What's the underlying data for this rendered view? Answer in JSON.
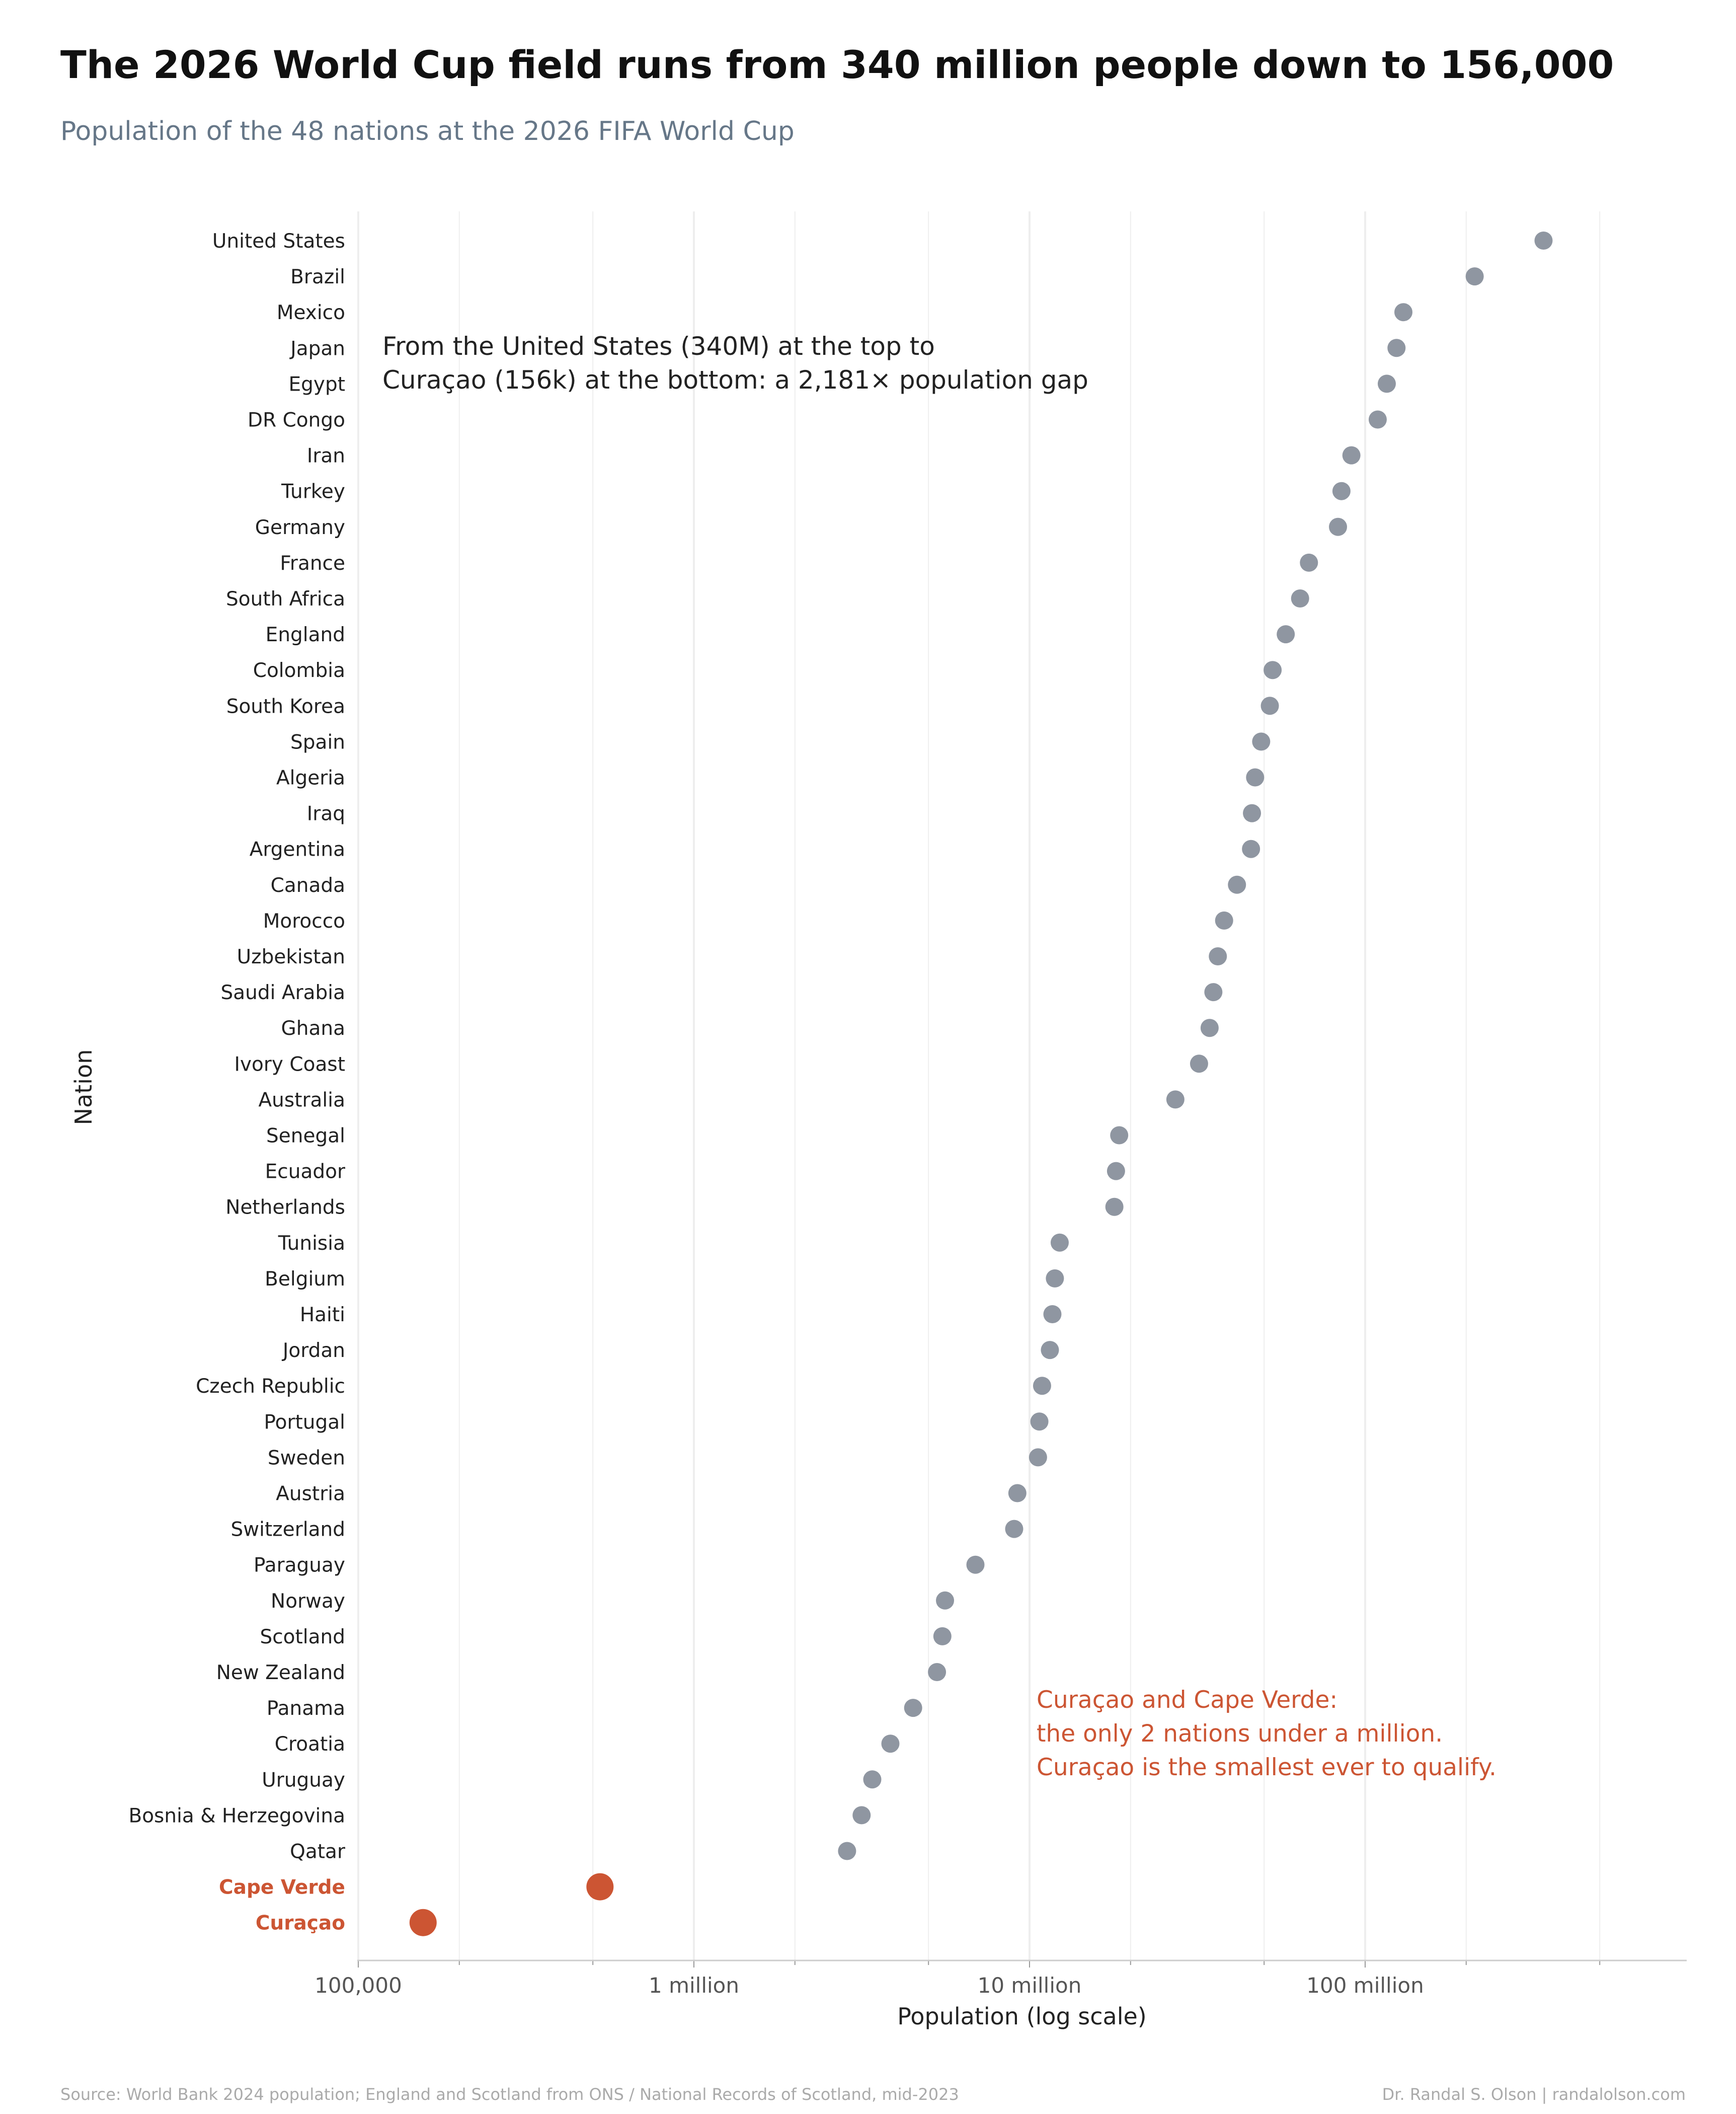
{
  "title": "The 2026 World Cup field runs from 340 million people down to 156,000",
  "subtitle": "Population of the 48 nations at the 2026 FIFA World Cup",
  "annotation_top": {
    "line1": "From the United States (340M) at the top to",
    "line2": "Curaçao (156k) at the bottom: a 2,181× population gap"
  },
  "annotation_highlight": {
    "line1": "Curaçao and Cape Verde:",
    "line2": "the only 2 nations under a million.",
    "line3": "Curaçao is the smallest ever to qualify."
  },
  "footer": {
    "source": "Source: World Bank 2024 population; England and Scotland from ONS / National Records of Scotland, mid-2023",
    "credit": "Dr. Randal S. Olson  |  randalolson.com"
  },
  "colors": {
    "dot": "#8f96a1",
    "highlight": "#cc5533",
    "grid": "#eeeeee",
    "axis": "#cccccc"
  },
  "chart_data": {
    "type": "scatter",
    "orientation": "horizontal dot plot",
    "xlabel": "Population (log scale)",
    "ylabel": "Nation",
    "xscale": "log",
    "xlim": [
      100000,
      800000000
    ],
    "grid": "vertical",
    "xticks": [
      {
        "value": 100000,
        "label": "100,000"
      },
      {
        "value": 1000000,
        "label": "1 million"
      },
      {
        "value": 10000000,
        "label": "10 million"
      },
      {
        "value": 100000000,
        "label": "100 million"
      }
    ],
    "points": [
      {
        "name": "United States",
        "value": 340000000,
        "highlight": false
      },
      {
        "name": "Brazil",
        "value": 212000000,
        "highlight": false
      },
      {
        "name": "Mexico",
        "value": 130000000,
        "highlight": false
      },
      {
        "name": "Japan",
        "value": 124000000,
        "highlight": false
      },
      {
        "name": "Egypt",
        "value": 116000000,
        "highlight": false
      },
      {
        "name": "DR Congo",
        "value": 109000000,
        "highlight": false
      },
      {
        "name": "Iran",
        "value": 91000000,
        "highlight": false
      },
      {
        "name": "Turkey",
        "value": 85000000,
        "highlight": false
      },
      {
        "name": "Germany",
        "value": 83000000,
        "highlight": false
      },
      {
        "name": "France",
        "value": 68000000,
        "highlight": false
      },
      {
        "name": "South Africa",
        "value": 64000000,
        "highlight": false
      },
      {
        "name": "England",
        "value": 58000000,
        "highlight": false
      },
      {
        "name": "Colombia",
        "value": 53000000,
        "highlight": false
      },
      {
        "name": "South Korea",
        "value": 52000000,
        "highlight": false
      },
      {
        "name": "Spain",
        "value": 49000000,
        "highlight": false
      },
      {
        "name": "Algeria",
        "value": 47000000,
        "highlight": false
      },
      {
        "name": "Iraq",
        "value": 46000000,
        "highlight": false
      },
      {
        "name": "Argentina",
        "value": 45700000,
        "highlight": false
      },
      {
        "name": "Canada",
        "value": 41500000,
        "highlight": false
      },
      {
        "name": "Morocco",
        "value": 38000000,
        "highlight": false
      },
      {
        "name": "Uzbekistan",
        "value": 36400000,
        "highlight": false
      },
      {
        "name": "Saudi Arabia",
        "value": 35300000,
        "highlight": false
      },
      {
        "name": "Ghana",
        "value": 34400000,
        "highlight": false
      },
      {
        "name": "Ivory Coast",
        "value": 32000000,
        "highlight": false
      },
      {
        "name": "Australia",
        "value": 27200000,
        "highlight": false
      },
      {
        "name": "Senegal",
        "value": 18500000,
        "highlight": false
      },
      {
        "name": "Ecuador",
        "value": 18100000,
        "highlight": false
      },
      {
        "name": "Netherlands",
        "value": 17900000,
        "highlight": false
      },
      {
        "name": "Tunisia",
        "value": 12300000,
        "highlight": false
      },
      {
        "name": "Belgium",
        "value": 11900000,
        "highlight": false
      },
      {
        "name": "Haiti",
        "value": 11700000,
        "highlight": false
      },
      {
        "name": "Jordan",
        "value": 11500000,
        "highlight": false
      },
      {
        "name": "Czech Republic",
        "value": 10900000,
        "highlight": false
      },
      {
        "name": "Portugal",
        "value": 10700000,
        "highlight": false
      },
      {
        "name": "Sweden",
        "value": 10600000,
        "highlight": false
      },
      {
        "name": "Austria",
        "value": 9200000,
        "highlight": false
      },
      {
        "name": "Switzerland",
        "value": 9000000,
        "highlight": false
      },
      {
        "name": "Paraguay",
        "value": 6900000,
        "highlight": false
      },
      {
        "name": "Norway",
        "value": 5600000,
        "highlight": false
      },
      {
        "name": "Scotland",
        "value": 5500000,
        "highlight": false
      },
      {
        "name": "New Zealand",
        "value": 5300000,
        "highlight": false
      },
      {
        "name": "Panama",
        "value": 4500000,
        "highlight": false
      },
      {
        "name": "Croatia",
        "value": 3850000,
        "highlight": false
      },
      {
        "name": "Uruguay",
        "value": 3400000,
        "highlight": false
      },
      {
        "name": "Bosnia & Herzegovina",
        "value": 3160000,
        "highlight": false
      },
      {
        "name": "Qatar",
        "value": 2860000,
        "highlight": false
      },
      {
        "name": "Cape Verde",
        "value": 525000,
        "highlight": true
      },
      {
        "name": "Curaçao",
        "value": 156000,
        "highlight": true
      }
    ]
  }
}
